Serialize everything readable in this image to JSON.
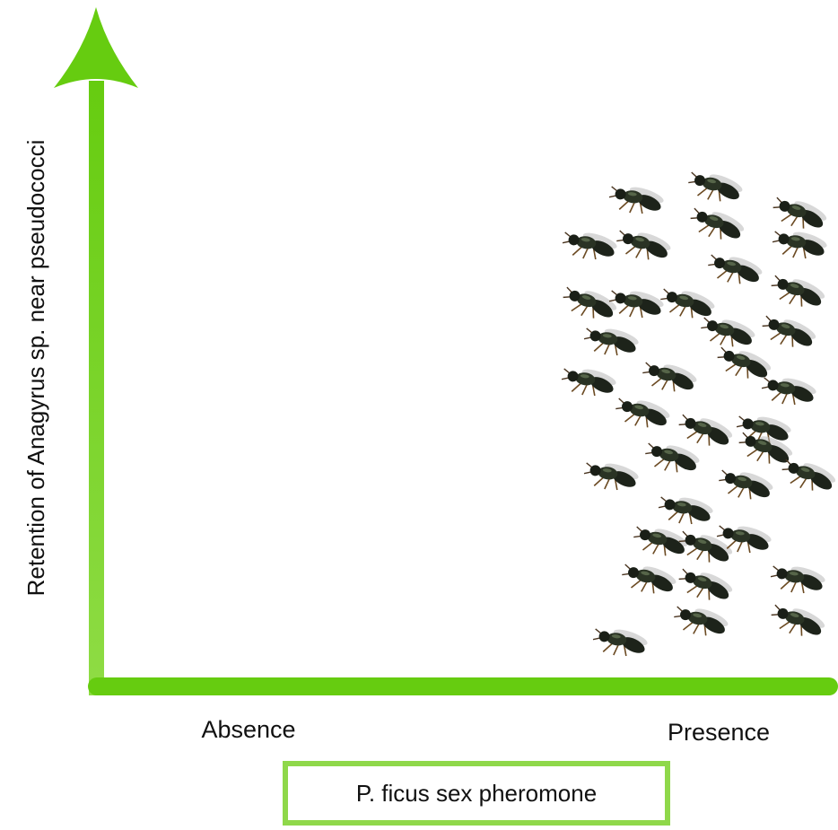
{
  "axes": {
    "y_label": "Retention of Anagyrus sp. near pseudococci",
    "x_categories": [
      "Absence",
      "Presence"
    ],
    "x_label": "P. ficus sex pheromone"
  }
}
